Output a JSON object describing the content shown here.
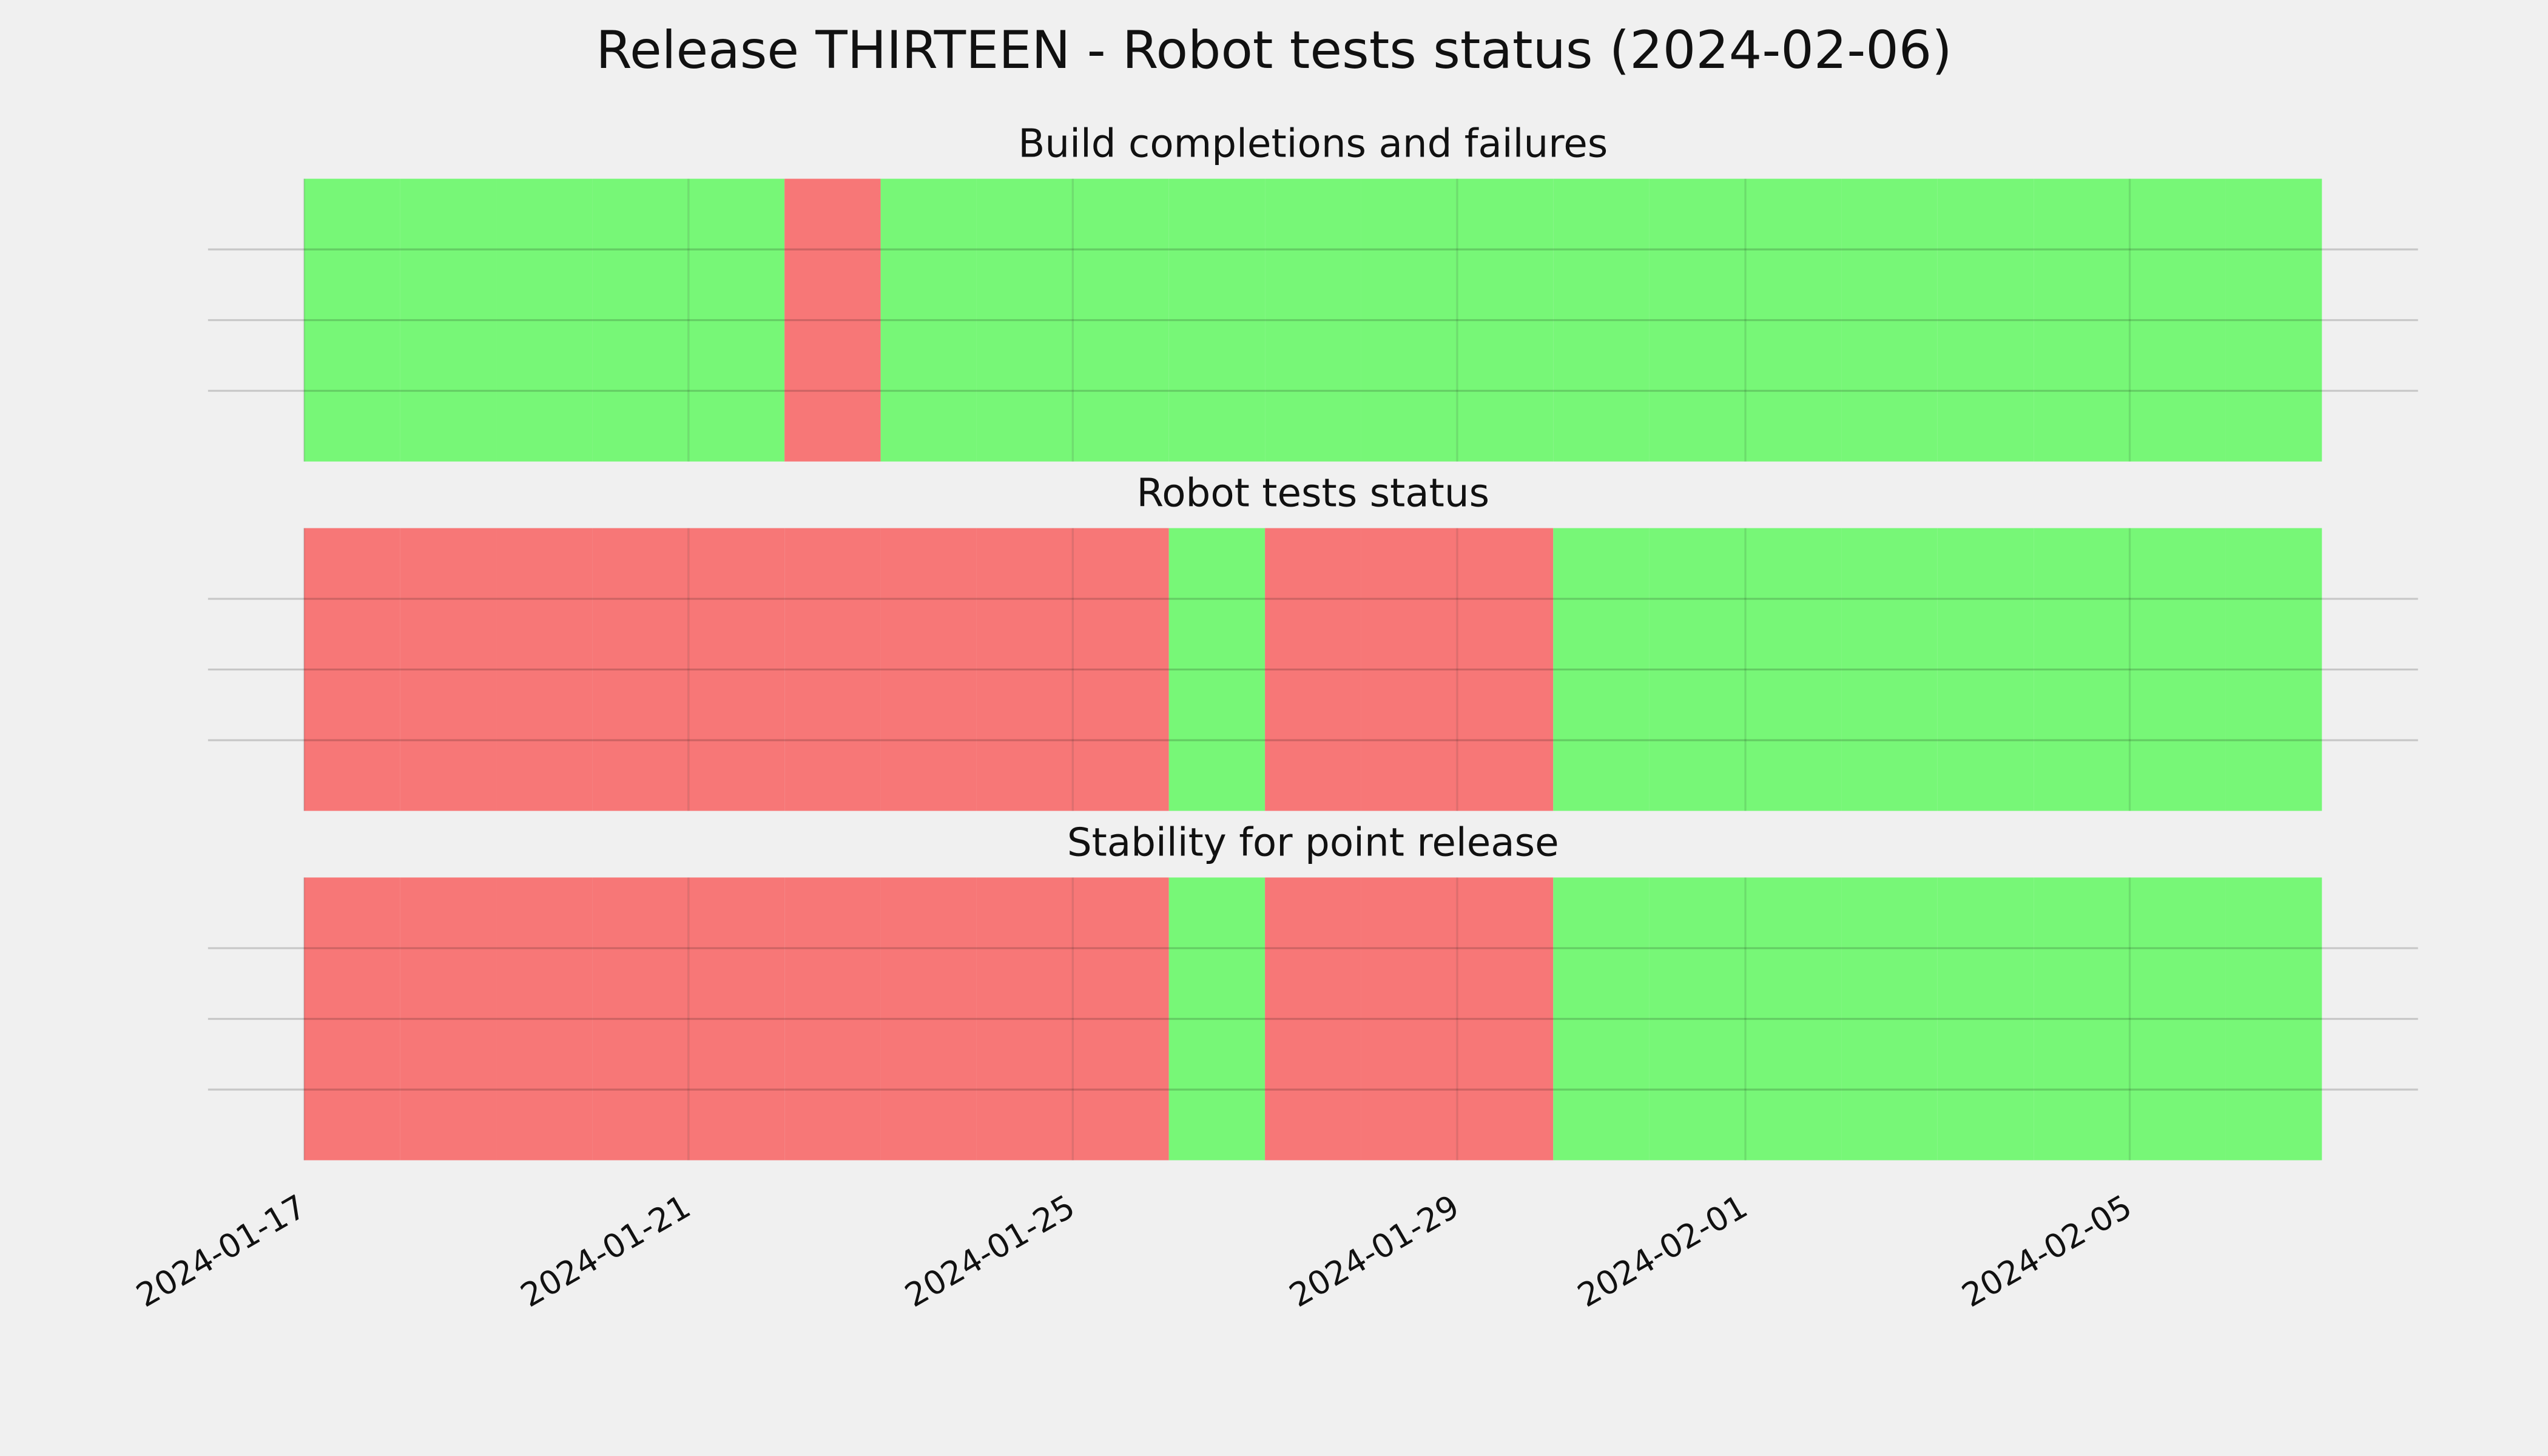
{
  "title": "Release THIRTEEN - Robot tests status (2024-02-06)",
  "chart_data": [
    {
      "type": "status-timeline",
      "title": "Build completions and failures",
      "x": [
        "2024-01-17",
        "2024-01-18",
        "2024-01-19",
        "2024-01-20",
        "2024-01-21",
        "2024-01-22",
        "2024-01-23",
        "2024-01-24",
        "2024-01-25",
        "2024-01-26",
        "2024-01-27",
        "2024-01-28",
        "2024-01-29",
        "2024-01-30",
        "2024-01-31",
        "2024-02-01",
        "2024-02-02",
        "2024-02-03",
        "2024-02-04",
        "2024-02-05",
        "2024-02-06"
      ],
      "values": [
        1,
        1,
        1,
        1,
        1,
        0,
        1,
        1,
        1,
        1,
        1,
        1,
        1,
        1,
        1,
        1,
        1,
        1,
        1,
        1,
        1
      ],
      "colors": [
        "#f77777",
        "#77f777"
      ],
      "xlim": [
        "2024-01-16",
        "2024-02-08"
      ],
      "ylim": [
        0,
        1
      ],
      "yticks": [
        0.25,
        0.5,
        0.75
      ],
      "grid": true
    },
    {
      "type": "status-timeline",
      "title": "Robot tests status",
      "x": [
        "2024-01-17",
        "2024-01-18",
        "2024-01-19",
        "2024-01-20",
        "2024-01-21",
        "2024-01-22",
        "2024-01-23",
        "2024-01-24",
        "2024-01-25",
        "2024-01-26",
        "2024-01-27",
        "2024-01-28",
        "2024-01-29",
        "2024-01-30",
        "2024-01-31",
        "2024-02-01",
        "2024-02-02",
        "2024-02-03",
        "2024-02-04",
        "2024-02-05",
        "2024-02-06"
      ],
      "values": [
        0,
        0,
        0,
        0,
        0,
        0,
        0,
        0,
        0,
        1,
        0,
        0,
        0,
        1,
        1,
        1,
        1,
        1,
        1,
        1,
        1
      ],
      "colors": [
        "#f77777",
        "#77f777"
      ],
      "xlim": [
        "2024-01-16",
        "2024-02-08"
      ],
      "ylim": [
        0,
        1
      ],
      "yticks": [
        0.25,
        0.5,
        0.75
      ],
      "grid": true
    },
    {
      "type": "status-timeline",
      "title": "Stability for point release",
      "x": [
        "2024-01-17",
        "2024-01-18",
        "2024-01-19",
        "2024-01-20",
        "2024-01-21",
        "2024-01-22",
        "2024-01-23",
        "2024-01-24",
        "2024-01-25",
        "2024-01-26",
        "2024-01-27",
        "2024-01-28",
        "2024-01-29",
        "2024-01-30",
        "2024-01-31",
        "2024-02-01",
        "2024-02-02",
        "2024-02-03",
        "2024-02-04",
        "2024-02-05",
        "2024-02-06"
      ],
      "values": [
        0,
        0,
        0,
        0,
        0,
        0,
        0,
        0,
        0,
        1,
        0,
        0,
        0,
        1,
        1,
        1,
        1,
        1,
        1,
        1,
        1
      ],
      "colors": [
        "#f77777",
        "#77f777"
      ],
      "xlim": [
        "2024-01-16",
        "2024-02-08"
      ],
      "ylim": [
        0,
        1
      ],
      "yticks": [
        0.25,
        0.5,
        0.75
      ],
      "grid": true,
      "xticks": [
        "2024-01-17",
        "2024-01-21",
        "2024-01-25",
        "2024-01-29",
        "2024-02-01",
        "2024-02-05"
      ]
    }
  ]
}
